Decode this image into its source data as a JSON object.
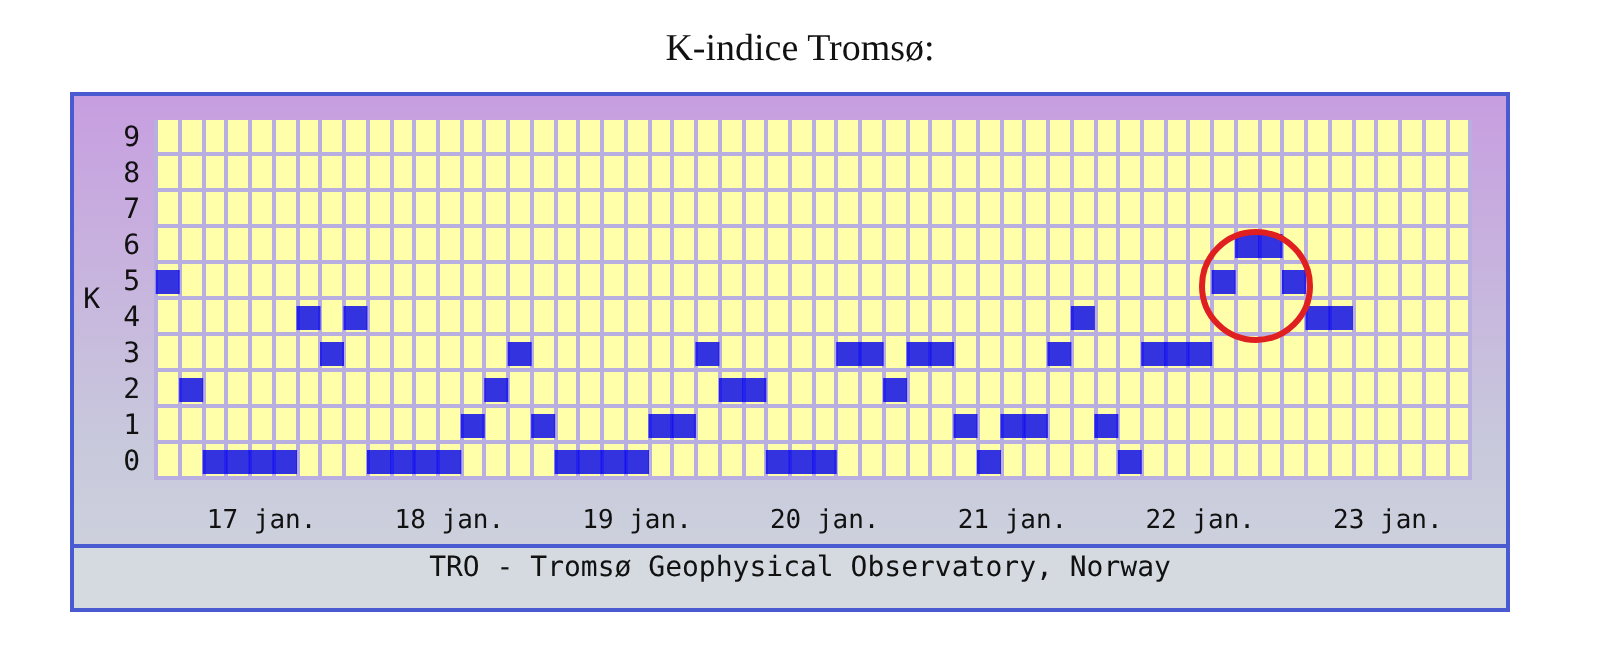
{
  "chart_data": {
    "type": "scatter",
    "title": "K-indice Tromsø:",
    "ylabel": "K",
    "annotations": [
      "TRO - Tromsø Geophysical Observatory, Norway"
    ],
    "categories": [
      null,
      null,
      null,
      null,
      "17 jan.",
      null,
      null,
      null,
      null,
      null,
      null,
      null,
      "18 jan.",
      null,
      null,
      null,
      null,
      null,
      null,
      null,
      "19 jan.",
      null,
      null,
      null,
      null,
      null,
      null,
      null,
      "20 jan.",
      null,
      null,
      null,
      null,
      null,
      null,
      null,
      "21 jan.",
      null,
      null,
      null,
      null,
      null,
      null,
      null,
      "22 jan.",
      null,
      null,
      null,
      null,
      null,
      null,
      null,
      "23 jan.",
      null,
      null,
      null
    ],
    "values": [
      5,
      2,
      0,
      0,
      0,
      0,
      4,
      3,
      4,
      0,
      0,
      0,
      0,
      1,
      2,
      3,
      1,
      0,
      0,
      0,
      0,
      1,
      1,
      3,
      2,
      2,
      0,
      0,
      0,
      3,
      3,
      2,
      3,
      3,
      1,
      0,
      1,
      1,
      3,
      4,
      1,
      0,
      3,
      3,
      3,
      5,
      6,
      6,
      5,
      4,
      4,
      null,
      null,
      null,
      null,
      null
    ],
    "color": "#0000ee",
    "marker": "square",
    "grid": true,
    "ylim": [
      -0.5,
      9.5
    ],
    "yticks": [
      0,
      1,
      2,
      3,
      4,
      5,
      6,
      7,
      8,
      9
    ]
  }
}
